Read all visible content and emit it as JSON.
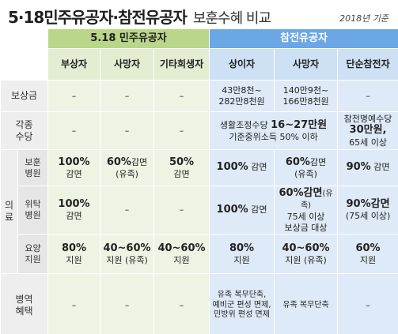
{
  "title": {
    "main": "5·18민주유공자·참전유공자",
    "sub": "보훈수혜 비교",
    "year": "2018년 기준"
  },
  "groups": {
    "g1": "5.18 민주유공자",
    "g2": "참전유공자"
  },
  "columns": {
    "c1": "부상자",
    "c2": "사망자",
    "c3": "기타희생자",
    "c4": "상이자",
    "c5": "사망자",
    "c6": "단순참전자"
  },
  "rows": {
    "compensation": {
      "label": "보상금",
      "c1": "–",
      "c2": "–",
      "c3": "–",
      "c4_l1": "43만8천~",
      "c4_l2": "282만8천원",
      "c5_l1": "140만9천~",
      "c5_l2": "166만8천원",
      "c6": "–"
    },
    "allowance": {
      "label_l1": "각종",
      "label_l2": "수당",
      "c1": "–",
      "c2": "–",
      "c3": "–",
      "b_l1a": "생활조정수당",
      "b_l1b": "16~27만원",
      "b_l2": "기준중위소득 50% 이하",
      "c6_l1": "참전명예수당",
      "c6_l2": "30만원,",
      "c6_l3": "65세 이상"
    },
    "medical": {
      "vlabel_l1": "의",
      "vlabel_l2": "료",
      "veteran_hospital": {
        "label_l1": "보훈",
        "label_l2": "병원",
        "c1_big": "100%",
        "c1_small": "감면",
        "c2_big": "60%",
        "c2_small1": "감면",
        "c2_small2": "(유족)",
        "c3_big": "50%",
        "c3_small": "감면",
        "c4_big": "100%",
        "c4_small": "감면",
        "c5_big": "60%",
        "c5_small1": "감면",
        "c5_small2": "(유족)",
        "c6_big": "90%",
        "c6_small": "감면"
      },
      "contract_hospital": {
        "label_l1": "위탁",
        "label_l2": "병원",
        "c1_big": "100%",
        "c1_small": "감면",
        "c2": "–",
        "c3": "–",
        "c4_big": "100%",
        "c4_small": "감면",
        "c5_big": "60%감면",
        "c5_small1": "(유족)",
        "c5_l2": "75세 이상",
        "c5_l3": "보상금 대상",
        "c6_big": "90%감면",
        "c6_l2": "(75세 이상)"
      },
      "nursing": {
        "label_l1": "요양",
        "label_l2": "지원",
        "c1_big": "80%",
        "c1_small": "지원",
        "c2_big": "40~60%",
        "c2_small": "지원 (유족)",
        "c3_big": "40~60%",
        "c3_small": "지원",
        "c4_big": "80%",
        "c4_small": "지원",
        "c5_big": "40~60%",
        "c5_small": "지원 (유족)",
        "c6_big": "60%",
        "c6_small": "지원"
      }
    },
    "military": {
      "label_l1": "병역",
      "label_l2": "혜택",
      "c1": "–",
      "c2": "–",
      "c3": "–",
      "c4_l1": "유족 복무단축,",
      "c4_l2": "예비군 편성 면제,",
      "c4_l3": "민방위 편성 면제",
      "c5": "유족 복무단축",
      "c6": "–"
    }
  },
  "colors": {
    "green_header": "#b9d68a",
    "green_cell": "#eef4e4",
    "blue_header": "#6aa7e4",
    "blue_cell": "#deeaf7"
  }
}
